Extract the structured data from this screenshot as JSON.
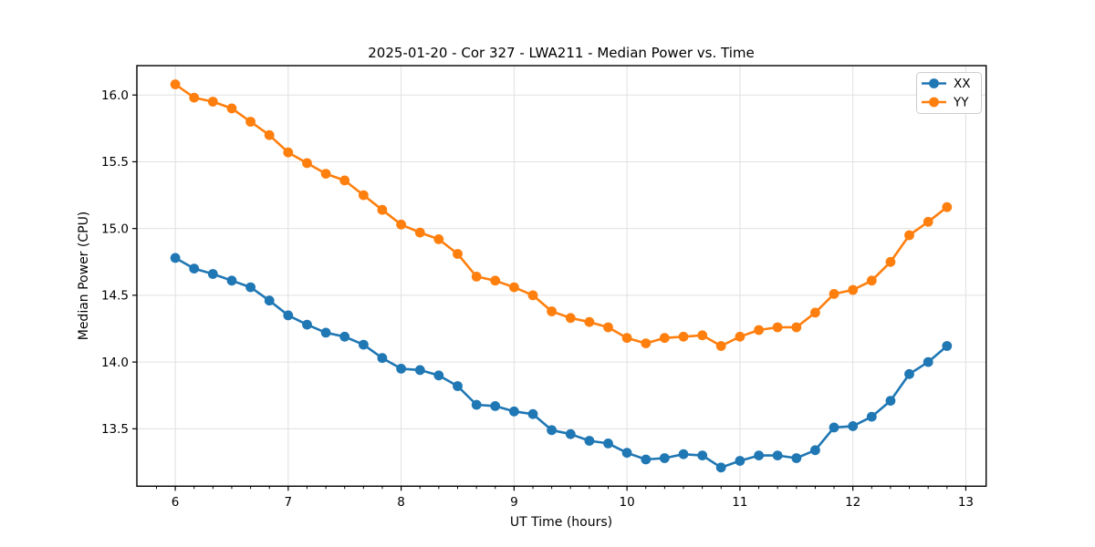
{
  "chart_data": {
    "type": "line",
    "title": "2025-01-20 - Cor 327 - LWA211 - Median Power vs. Time",
    "xlabel": "UT Time (hours)",
    "ylabel": "Median Power (CPU)",
    "xlim": [
      5.66,
      13.18
    ],
    "ylim": [
      13.07,
      16.22
    ],
    "x_ticks": [
      6,
      7,
      8,
      9,
      10,
      11,
      12,
      13
    ],
    "y_ticks": [
      13.5,
      14.0,
      14.5,
      15.0,
      15.5,
      16.0
    ],
    "x_minor_step": 0.166667,
    "grid": true,
    "grid_color": "#e0e0e0",
    "legend_position": "upper right",
    "x": [
      6.0,
      6.167,
      6.333,
      6.5,
      6.667,
      6.833,
      7.0,
      7.167,
      7.333,
      7.5,
      7.667,
      7.833,
      8.0,
      8.167,
      8.333,
      8.5,
      8.667,
      8.833,
      9.0,
      9.167,
      9.333,
      9.5,
      9.667,
      9.833,
      10.0,
      10.167,
      10.333,
      10.5,
      10.667,
      10.833,
      11.0,
      11.167,
      11.333,
      11.5,
      11.667,
      11.833,
      12.0,
      12.167,
      12.333,
      12.5,
      12.667,
      12.833
    ],
    "series": [
      {
        "name": "XX",
        "color": "#1f77b4",
        "values": [
          14.78,
          14.7,
          14.66,
          14.61,
          14.56,
          14.46,
          14.35,
          14.28,
          14.22,
          14.19,
          14.13,
          14.03,
          13.95,
          13.94,
          13.9,
          13.82,
          13.68,
          13.67,
          13.63,
          13.61,
          13.49,
          13.46,
          13.41,
          13.39,
          13.32,
          13.27,
          13.28,
          13.31,
          13.3,
          13.21,
          13.26,
          13.3,
          13.3,
          13.28,
          13.34,
          13.51,
          13.52,
          13.59,
          13.71,
          13.91,
          14.0,
          14.12
        ]
      },
      {
        "name": "YY",
        "color": "#ff7f0e",
        "values": [
          16.08,
          15.98,
          15.95,
          15.9,
          15.8,
          15.7,
          15.57,
          15.49,
          15.41,
          15.36,
          15.25,
          15.14,
          15.03,
          14.97,
          14.92,
          14.81,
          14.64,
          14.61,
          14.56,
          14.5,
          14.38,
          14.33,
          14.3,
          14.26,
          14.18,
          14.14,
          14.18,
          14.19,
          14.2,
          14.12,
          14.19,
          14.24,
          14.26,
          14.26,
          14.37,
          14.51,
          14.54,
          14.61,
          14.75,
          14.95,
          15.05,
          15.16
        ]
      }
    ]
  },
  "legend": {
    "items": [
      {
        "label": "XX",
        "color": "#1f77b4"
      },
      {
        "label": "YY",
        "color": "#ff7f0e"
      }
    ]
  },
  "style": {
    "spine_color": "#000000",
    "tick_color": "#000000",
    "legend_border_color": "#cccccc",
    "background": "#ffffff"
  }
}
